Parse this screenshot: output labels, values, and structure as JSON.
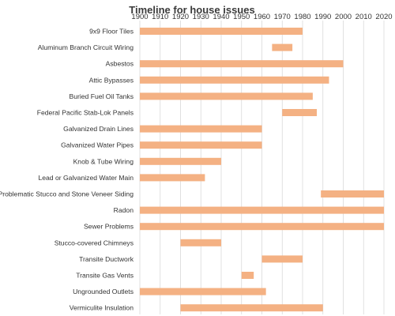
{
  "chart_data": {
    "type": "bar",
    "orientation": "horizontal-floating",
    "title": "Timeline for house issues",
    "xlabel": "",
    "ylabel": "",
    "xlim": [
      1900,
      2020
    ],
    "x_ticks": [
      "1900",
      "1910",
      "1920",
      "1930",
      "1940",
      "1950",
      "1960",
      "1970",
      "1980",
      "1990",
      "2000",
      "2010",
      "2020"
    ],
    "x_axis_position": "top",
    "grid": "vertical",
    "legend": "none",
    "bar_color": "#F4B183",
    "categories": [
      "9x9 Floor Tiles",
      "Aluminum Branch Circuit Wiring",
      "Asbestos",
      "Attic Bypasses",
      "Buried Fuel Oil Tanks",
      "Federal Pacific Stab-Lok  Panels",
      "Galvanized Drain Lines",
      "Galvanized Water Pipes",
      "Knob & Tube Wiring",
      "Lead or Galvanized Water Main",
      "Problematic Stucco and Stone Veneer Siding",
      "Radon",
      "Sewer Problems",
      "Stucco-covered Chimneys",
      "Transite Ductwork",
      "Transite Gas Vents",
      "Ungrounded Outlets",
      "Vermiculite Insulation"
    ],
    "start": [
      1900,
      1965,
      1900,
      1900,
      1900,
      1970,
      1900,
      1900,
      1900,
      1900,
      1989,
      1900,
      1900,
      1920,
      1960,
      1950,
      1900,
      1920
    ],
    "end": [
      1980,
      1975,
      2000,
      1993,
      1985,
      1987,
      1960,
      1960,
      1940,
      1932,
      2020,
      2020,
      2020,
      1940,
      1980,
      1956,
      1962,
      1990
    ]
  }
}
